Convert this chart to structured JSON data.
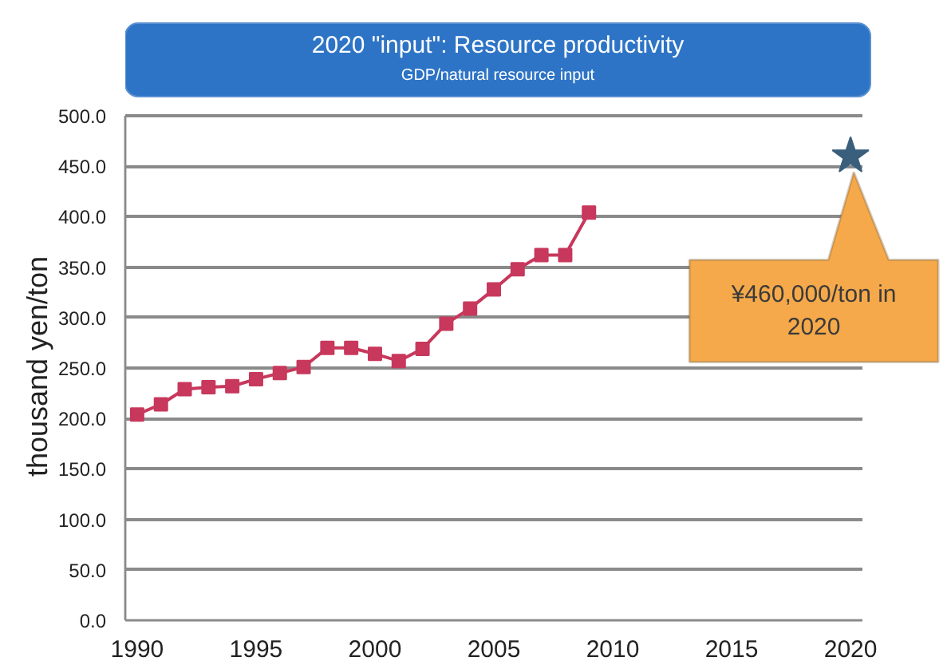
{
  "chart_data": {
    "type": "line",
    "title": "2020 \"input\": Resource productivity",
    "subtitle": "GDP/natural resource input",
    "ylabel": "thousand yen/ton",
    "x": [
      1990,
      1991,
      1992,
      1993,
      1994,
      1995,
      1996,
      1997,
      1998,
      1999,
      2000,
      2001,
      2002,
      2003,
      2004,
      2005,
      2006,
      2007,
      2008,
      2009
    ],
    "series": [
      {
        "color": "#c8385c",
        "values": [
          204,
          214,
          229,
          231,
          232,
          239,
          245,
          251,
          270,
          270,
          264,
          257,
          269,
          294,
          309,
          328,
          348,
          362,
          362,
          404
        ]
      },
      {
        "type": "scatter",
        "marker": "star",
        "color": "#3a5f7d",
        "x": [
          2020
        ],
        "values": [
          460
        ]
      }
    ],
    "xlim": [
      1989.5,
      2020.5
    ],
    "xticks": [
      1990,
      1995,
      2000,
      2005,
      2010,
      2015,
      2020
    ],
    "ylim": [
      0,
      500
    ],
    "yticks": [
      {
        "value": 0,
        "label": "0.0"
      },
      {
        "value": 50,
        "label": "50.0"
      },
      {
        "value": 100,
        "label": "100.0"
      },
      {
        "value": 150,
        "label": "150.0"
      },
      {
        "value": 200,
        "label": "200.0"
      },
      {
        "value": 250,
        "label": "250.0"
      },
      {
        "value": 300,
        "label": "300.0"
      },
      {
        "value": 350,
        "label": "350.0"
      },
      {
        "value": 400,
        "label": "400.0"
      },
      {
        "value": 450,
        "label": "450.0"
      },
      {
        "value": 500,
        "label": "500.0"
      }
    ],
    "grid": "y",
    "marker": "square",
    "line_style": "solid",
    "annotations": [
      "¥460,000/ton in 2020"
    ]
  }
}
